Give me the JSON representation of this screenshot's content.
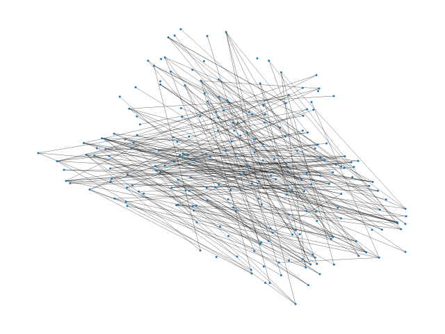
{
  "graph": {
    "type": "network",
    "node_color": "#1f77b4",
    "edge_color": "#000000",
    "background": "#ffffff",
    "labels_shown": false,
    "node_count": 230,
    "edge_count": 220,
    "seed": 7
  }
}
